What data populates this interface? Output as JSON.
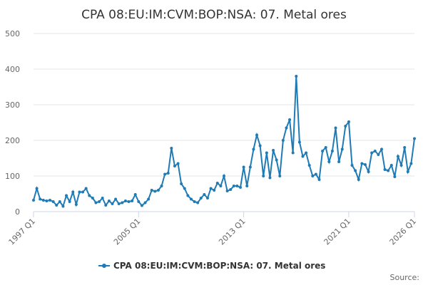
{
  "chart_data": {
    "type": "line",
    "title": "CPA 08:EU:IM:CVM:BOP:NSA: 07. Metal ores",
    "source": "Source:",
    "categories": [
      "1997 Q1",
      null,
      null,
      null,
      null,
      null,
      null,
      null,
      null,
      null,
      null,
      null,
      null,
      null,
      null,
      null,
      null,
      null,
      null,
      null,
      null,
      null,
      null,
      null,
      null,
      null,
      null,
      null,
      null,
      null,
      null,
      null,
      "2005 Q1",
      null,
      null,
      null,
      null,
      null,
      null,
      null,
      null,
      null,
      null,
      null,
      null,
      null,
      null,
      null,
      null,
      null,
      null,
      null,
      null,
      null,
      null,
      null,
      null,
      null,
      null,
      null,
      null,
      null,
      null,
      null,
      "2013 Q1",
      null,
      null,
      null,
      null,
      null,
      null,
      null,
      null,
      null,
      null,
      null,
      null,
      null,
      null,
      null,
      null,
      null,
      null,
      null,
      null,
      null,
      null,
      null,
      null,
      null,
      null,
      null,
      null,
      null,
      null,
      null,
      "2021 Q1",
      null,
      null,
      null,
      null,
      null,
      null,
      null,
      null,
      null,
      null,
      null,
      null,
      null,
      null,
      null,
      null,
      null,
      null,
      null,
      "2026 Q1"
    ],
    "series": [
      {
        "name": "CPA 08:EU:IM:CVM:BOP:NSA: 07. Metal ores",
        "color": "#1f7bb6",
        "values": [
          32,
          65,
          35,
          32,
          30,
          32,
          28,
          18,
          28,
          15,
          45,
          28,
          55,
          20,
          55,
          55,
          65,
          45,
          38,
          25,
          28,
          38,
          18,
          30,
          22,
          35,
          22,
          25,
          30,
          28,
          30,
          48,
          28,
          17,
          25,
          35,
          60,
          57,
          60,
          72,
          105,
          108,
          178,
          128,
          135,
          78,
          65,
          45,
          35,
          28,
          25,
          38,
          48,
          38,
          65,
          60,
          80,
          72,
          100,
          58,
          62,
          72,
          72,
          68,
          125,
          72,
          125,
          175,
          215,
          185,
          100,
          165,
          95,
          172,
          145,
          100,
          200,
          235,
          258,
          165,
          380,
          195,
          155,
          165,
          130,
          100,
          105,
          90,
          170,
          180,
          140,
          170,
          235,
          140,
          175,
          240,
          252,
          130,
          115,
          90,
          135,
          132,
          112,
          165,
          170,
          160,
          175,
          118,
          115,
          130,
          98,
          155,
          130,
          180,
          112,
          135,
          205
        ]
      }
    ],
    "ylim": [
      0,
      500
    ],
    "yticks": [
      0,
      100,
      200,
      300,
      400,
      500
    ],
    "grid": true
  }
}
